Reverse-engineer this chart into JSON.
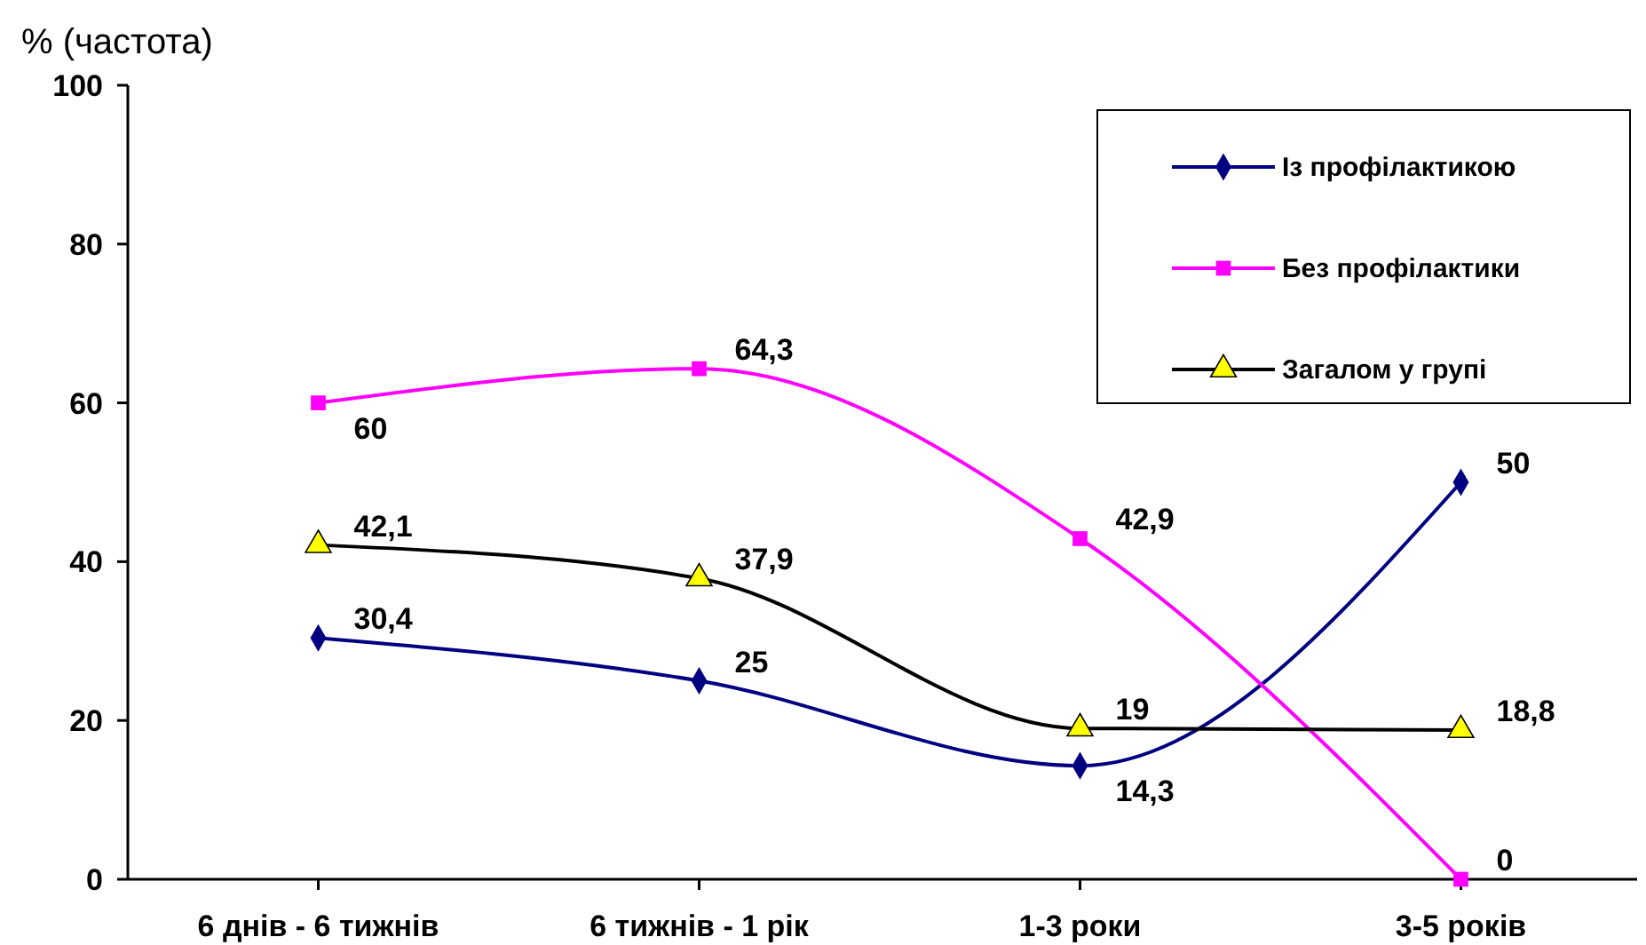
{
  "chart_data": {
    "type": "line",
    "ylabel": "% (частота)",
    "categories": [
      "6 днів - 6 тижнів",
      "6 тижнів - 1 рік",
      "1-3 роки",
      "3-5 років"
    ],
    "ylim": [
      0,
      100
    ],
    "yticks": [
      0,
      20,
      40,
      60,
      80,
      100
    ],
    "grid": false,
    "legend": "top right",
    "line_style": "solid",
    "series": [
      {
        "name": "Із профілактикою",
        "color": "#000080",
        "marker": "diamond",
        "values": [
          30.4,
          25,
          14.3,
          50
        ],
        "value_labels": [
          "30,4",
          "25",
          "14,3",
          "50"
        ]
      },
      {
        "name": "Без профілактики",
        "color": "#ff00ff",
        "marker": "square",
        "values": [
          60,
          64.3,
          42.9,
          0
        ],
        "value_labels": [
          "60",
          "64,3",
          "42,9",
          "0"
        ]
      },
      {
        "name": "Загалом у групі",
        "color": "#000000",
        "colors": [
          "#ffff00",
          "#ffff00",
          "#ffff00",
          "#ffff00"
        ],
        "marker": "triangle",
        "values": [
          42.1,
          37.9,
          19,
          18.8
        ],
        "value_labels": [
          "42,1",
          "37,9",
          "19",
          "18,8"
        ]
      }
    ]
  }
}
